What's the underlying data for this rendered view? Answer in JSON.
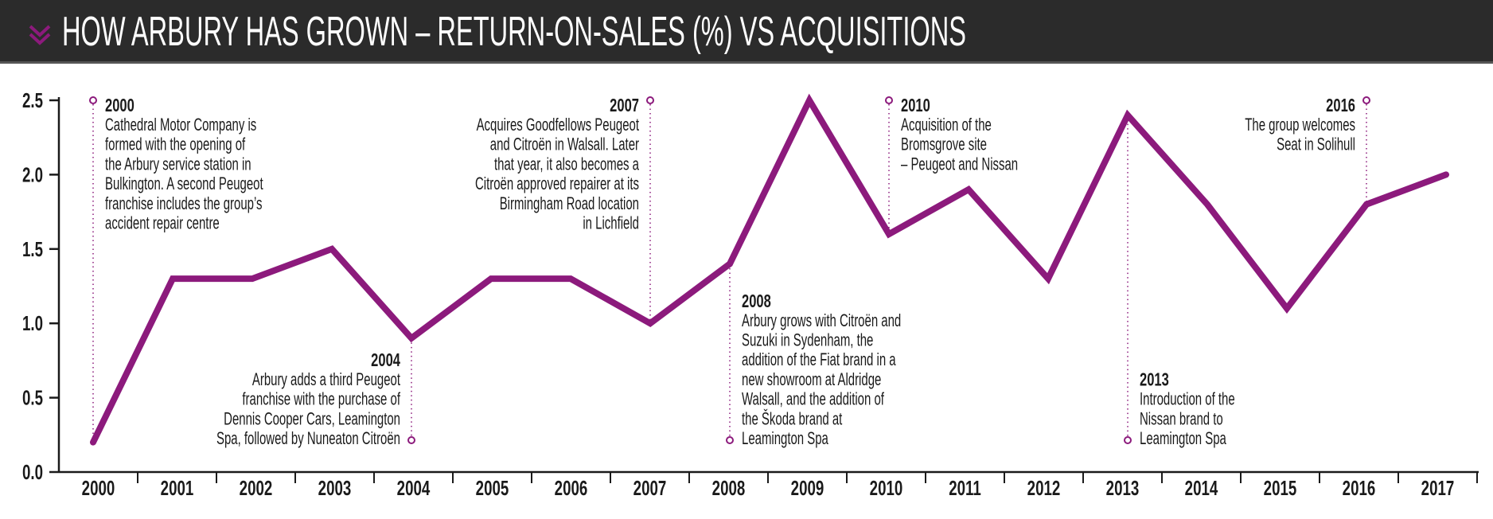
{
  "header": {
    "title": "HOW ARBURY HAS GROWN – RETURN-ON-SALES (%) VS ACQUISITIONS",
    "icon": "double-chevron-down-icon"
  },
  "colors": {
    "accent": "#8c1a7c",
    "header_bg": "#2b2b2b",
    "text": "#1a1a1a"
  },
  "chart_data": {
    "type": "line",
    "title": "HOW ARBURY HAS GROWN – RETURN-ON-SALES (%) VS ACQUISITIONS",
    "xlabel": "",
    "ylabel": "",
    "ylim": [
      0,
      2.5
    ],
    "yticks": [
      "0.0",
      "0.5",
      "1.0",
      "1.5",
      "2.0",
      "2.5"
    ],
    "grid": false,
    "categories": [
      "2000",
      "2001",
      "2002",
      "2003",
      "2004",
      "2005",
      "2006",
      "2007",
      "2008",
      "2009",
      "2010",
      "2011",
      "2012",
      "2013",
      "2014",
      "2015",
      "2016",
      "2017"
    ],
    "values": [
      0.2,
      1.3,
      1.3,
      1.5,
      0.9,
      1.3,
      1.3,
      1.0,
      1.4,
      2.5,
      1.6,
      1.9,
      1.3,
      2.4,
      1.8,
      1.1,
      1.8,
      2.0
    ],
    "annotations": [
      {
        "year": "2000",
        "position": "top",
        "align": "start",
        "lines": [
          "Cathedral Motor Company is",
          "formed with the opening of",
          "the Arbury service station in",
          "Bulkington. A second Peugeot",
          "franchise includes the group’s",
          "accident repair centre"
        ]
      },
      {
        "year": "2004",
        "position": "bottom",
        "align": "end",
        "lines": [
          "Arbury adds a third Peugeot",
          "franchise with the purchase of",
          "Dennis Cooper Cars, Leamington",
          "Spa, followed by Nuneaton Citroën"
        ]
      },
      {
        "year": "2007",
        "position": "top",
        "align": "end",
        "lines": [
          "Acquires Goodfellows Peugeot",
          "and Citroën in Walsall. Later",
          "that year, it also becomes a",
          "Citroën approved repairer at its",
          "Birmingham Road location",
          "in Lichfield"
        ]
      },
      {
        "year": "2008",
        "position": "bottom",
        "align": "start",
        "lines": [
          "Arbury grows with Citroën and",
          "Suzuki in Sydenham, the",
          "addition of the Fiat brand in a",
          "new showroom at Aldridge",
          "Walsall, and the addition of",
          "the Škoda brand at",
          "Leamington Spa"
        ]
      },
      {
        "year": "2010",
        "position": "top",
        "align": "start",
        "lines": [
          "Acquisition of the",
          "Bromsgrove site",
          "– Peugeot and Nissan"
        ]
      },
      {
        "year": "2013",
        "position": "bottom",
        "align": "start",
        "lines": [
          "Introduction of the",
          "Nissan brand to",
          "Leamington Spa"
        ]
      },
      {
        "year": "2016",
        "position": "top",
        "align": "end",
        "lines": [
          "The group welcomes",
          "Seat in Solihull"
        ]
      }
    ]
  }
}
